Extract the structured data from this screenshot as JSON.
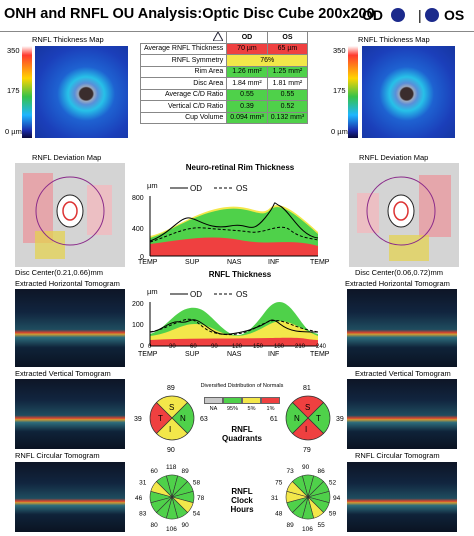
{
  "header": {
    "title": "ONH and RNFL OU Analysis:Optic Disc Cube 200x200",
    "od": "OD",
    "os": "OS"
  },
  "left": {
    "map_title": "RNFL Thickness Map",
    "scale_top": "350",
    "scale_mid": "175",
    "scale_bot": "0 µm",
    "dev_title": "RNFL Deviation Map",
    "disc_center": "Disc Center(0.21,0.66)mm",
    "h_tomo": "Extracted Horizontal Tomogram",
    "v_tomo": "Extracted Vertical Tomogram",
    "c_tomo": "RNFL Circular Tomogram"
  },
  "right": {
    "map_title": "RNFL Thickness Map",
    "scale_top": "350",
    "scale_mid": "175",
    "scale_bot": "0 µm",
    "dev_title": "RNFL Deviation Map",
    "disc_center": "Disc Center(0.06,0.72)mm",
    "h_tomo": "Extracted Horizontal Tomogram",
    "v_tomo": "Extracted Vertical Tomogram",
    "c_tomo": "RNFL Circular Tomogram"
  },
  "table": {
    "head": [
      "OD",
      "OS"
    ],
    "rows": [
      {
        "label": "Average RNFL Thickness",
        "od": "70 µm",
        "os": "65 µm",
        "odc": "r",
        "osc": "r"
      },
      {
        "label": "RNFL Symmetry",
        "span": "76%",
        "spc": "y"
      },
      {
        "label": "Rim Area",
        "od": "1.26 mm²",
        "os": "1.25 mm²",
        "odc": "g",
        "osc": "g"
      },
      {
        "label": "Disc Area",
        "od": "1.84 mm²",
        "os": "1.81 mm²",
        "odc": "w",
        "osc": "w"
      },
      {
        "label": "Average C/D Ratio",
        "od": "0.55",
        "os": "0.55",
        "odc": "g",
        "osc": "g"
      },
      {
        "label": "Vertical C/D Ratio",
        "od": "0.39",
        "os": "0.52",
        "odc": "g",
        "osc": "g"
      },
      {
        "label": "Cup Volume",
        "od": "0.094 mm³",
        "os": "0.132 mm³",
        "odc": "g",
        "osc": "g"
      }
    ]
  },
  "rim_chart": {
    "title": "Neuro-retinal Rim Thickness",
    "unit": "µm",
    "legend_od": "OD",
    "legend_os": "OS",
    "yticks": [
      "800",
      "400",
      "0"
    ],
    "xticks": [
      "TEMP",
      "SUP",
      "NAS",
      "INF",
      "TEMP"
    ]
  },
  "rnfl_chart": {
    "title": "RNFL Thickness",
    "unit": "µm",
    "legend_od": "OD",
    "legend_os": "OS",
    "yticks": [
      "200",
      "100",
      "0"
    ],
    "xticks": [
      "TEMP",
      "SUP",
      "NAS",
      "INF",
      "TEMP"
    ],
    "xnums": [
      "0",
      "30",
      "60",
      "90",
      "120",
      "150",
      "180",
      "210",
      "240"
    ]
  },
  "legend": {
    "title": "Diversified Distribution of Normals",
    "labels": [
      "NA",
      "95%",
      "5%",
      "1%"
    ],
    "colors": [
      "#c8c8c8",
      "#4fd14a",
      "#f3e74a",
      "#ef4040"
    ]
  },
  "quadrants": {
    "label": [
      "RNFL",
      "Quadrants"
    ],
    "od": {
      "S": "89",
      "N": "63",
      "I": "90",
      "T": "39",
      "colors": {
        "S": "#f3e74a",
        "N": "#4fd14a",
        "I": "#f3e74a",
        "T": "#ef4040"
      }
    },
    "os": {
      "S": "81",
      "N": "61",
      "I": "79",
      "T": "39",
      "colors": {
        "S": "#ef4040",
        "N": "#4fd14a",
        "I": "#ef4040",
        "T": "#4fd14a"
      }
    }
  },
  "clock": {
    "label": [
      "RNFL",
      "Clock",
      "Hours"
    ],
    "od": {
      "values": [
        "118",
        "89",
        "58",
        "78",
        "54",
        "90",
        "106",
        "80",
        "83",
        "46",
        "31",
        "60"
      ]
    },
    "os": {
      "values": [
        "90",
        "86",
        "52",
        "94",
        "59",
        "55",
        "106",
        "89",
        "48",
        "31",
        "75",
        "73"
      ]
    }
  }
}
